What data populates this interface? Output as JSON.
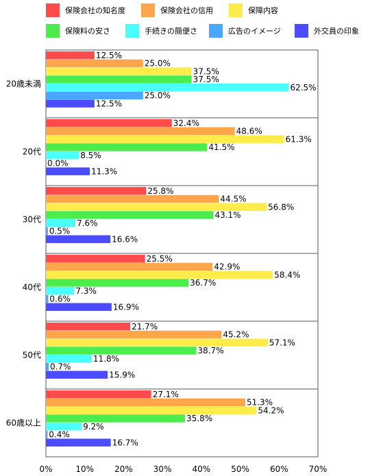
{
  "chart_data": {
    "type": "bar",
    "orientation": "horizontal",
    "categories": [
      "20歳未満",
      "20代",
      "30代",
      "40代",
      "50代",
      "60歳以上"
    ],
    "series": [
      {
        "name": "保険会社の知名度",
        "color": "#ff4b4b",
        "values": [
          12.5,
          32.4,
          25.8,
          25.5,
          21.7,
          27.1
        ]
      },
      {
        "name": "保険会社の信用",
        "color": "#ffa64b",
        "values": [
          25.0,
          48.6,
          44.5,
          42.9,
          45.2,
          51.3
        ]
      },
      {
        "name": "保障内容",
        "color": "#ffec4b",
        "values": [
          37.5,
          61.3,
          56.8,
          58.4,
          57.1,
          54.2
        ]
      },
      {
        "name": "保険料の安さ",
        "color": "#4bec4b",
        "values": [
          37.5,
          41.5,
          43.1,
          36.7,
          38.7,
          35.8
        ]
      },
      {
        "name": "手続きの簡便さ",
        "color": "#4bffff",
        "values": [
          62.5,
          8.5,
          7.6,
          7.3,
          11.8,
          9.2
        ]
      },
      {
        "name": "広告のイメージ",
        "color": "#4ba6ff",
        "values": [
          25.0,
          0.0,
          0.5,
          0.6,
          0.7,
          0.4
        ]
      },
      {
        "name": "外交員の印象",
        "color": "#4b4bff",
        "values": [
          12.5,
          11.3,
          16.6,
          16.9,
          15.9,
          16.7
        ]
      }
    ],
    "xlim": [
      0,
      70
    ],
    "xticks": [
      "0%",
      "10%",
      "20%",
      "30%",
      "40%",
      "50%",
      "60%",
      "70%"
    ],
    "value_suffix": "%",
    "legend_position": "top"
  }
}
